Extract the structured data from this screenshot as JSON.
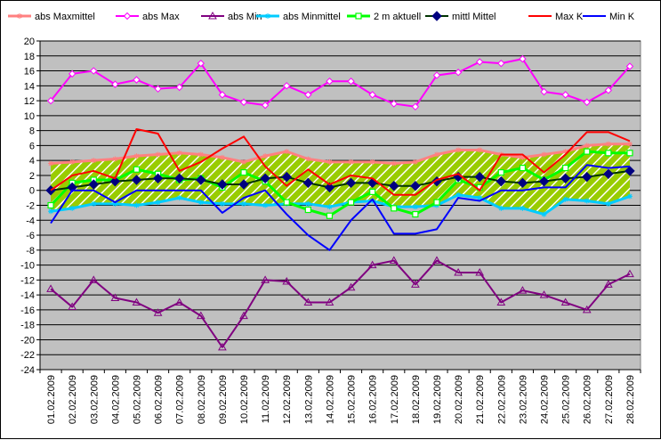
{
  "chart_data": {
    "type": "line",
    "title": "",
    "xlabel": "",
    "ylabel": "",
    "ylim": [
      -24,
      20
    ],
    "yticks": [
      20,
      18,
      16,
      14,
      12,
      10,
      8,
      6,
      4,
      2,
      0,
      -2,
      -4,
      -6,
      -8,
      -10,
      -12,
      -14,
      -16,
      -18,
      -20,
      -22,
      -24
    ],
    "grid": true,
    "legend_position": "top",
    "background": "#c0c0c0",
    "categories": [
      "01.02.2009",
      "02.02.2009",
      "03.02.2009",
      "04.02.2009",
      "05.02.2009",
      "06.02.2009",
      "07.02.2009",
      "08.02.2009",
      "09.02.2009",
      "10.02.2009",
      "11.02.2009",
      "12.02.2009",
      "13.02.2009",
      "14.02.2009",
      "15.02.2009",
      "16.02.2009",
      "17.02.2009",
      "18.02.2009",
      "19.02.2009",
      "20.02.2009",
      "21.02.2009",
      "22.02.2009",
      "23.02.2009",
      "24.02.2009",
      "25.02.2009",
      "26.02.2009",
      "27.02.2009",
      "28.02.2009"
    ],
    "band": {
      "upper_series": "abs Maxmittel",
      "lower_series": "abs Minmittel",
      "fill": "#99cc00",
      "hatch": "#ffffff"
    },
    "series": [
      {
        "name": "abs Maxmittel",
        "color": "#ff8080",
        "marker": "asterisk",
        "values": [
          3.6,
          3.8,
          4.0,
          4.2,
          4.6,
          4.8,
          5.0,
          4.8,
          4.4,
          3.8,
          4.6,
          5.2,
          4.2,
          3.8,
          3.8,
          3.8,
          3.6,
          3.8,
          4.8,
          5.4,
          5.4,
          4.8,
          4.4,
          4.8,
          5.2,
          6.0,
          6.2,
          6.2
        ]
      },
      {
        "name": "abs Max",
        "color": "#ff00ff",
        "marker": "diamond-open",
        "values": [
          12.0,
          15.6,
          16.0,
          14.2,
          14.8,
          13.6,
          13.8,
          17.0,
          12.8,
          11.8,
          11.4,
          14.0,
          12.8,
          14.6,
          14.6,
          12.8,
          11.6,
          11.2,
          15.4,
          15.8,
          17.2,
          17.0,
          17.6,
          13.2,
          12.8,
          11.8,
          13.4,
          16.6
        ]
      },
      {
        "name": "abs Min",
        "color": "#800080",
        "marker": "triangle-open",
        "values": [
          -13.2,
          -15.6,
          -12.0,
          -14.4,
          -15.0,
          -16.4,
          -15.0,
          -16.8,
          -21.0,
          -16.8,
          -12.0,
          -12.2,
          -15.0,
          -15.0,
          -13.0,
          -10.0,
          -9.4,
          -12.6,
          -9.4,
          -11.0,
          -11.0,
          -15.0,
          -13.4,
          -14.0,
          -15.0,
          -16.0,
          -12.6,
          -11.2
        ]
      },
      {
        "name": "abs Minmittel",
        "color": "#00ccff",
        "marker": "asterisk",
        "values": [
          -2.8,
          -2.4,
          -1.8,
          -1.8,
          -2.0,
          -1.6,
          -1.0,
          -1.6,
          -1.8,
          -1.8,
          -2.0,
          -1.8,
          -1.8,
          -2.2,
          -1.6,
          -1.4,
          -2.2,
          -2.2,
          -2.0,
          -0.6,
          -1.0,
          -2.4,
          -2.4,
          -3.2,
          -1.2,
          -1.4,
          -1.8,
          -0.8
        ]
      },
      {
        "name": "2 m aktuell",
        "color": "#00ff00",
        "marker": "square-open",
        "values": [
          -2.0,
          1.0,
          1.4,
          1.4,
          2.8,
          2.2,
          1.4,
          1.6,
          0.4,
          2.4,
          1.2,
          -1.6,
          -2.6,
          -3.4,
          -1.6,
          -0.2,
          -2.4,
          -3.2,
          -1.6,
          1.4,
          0.4,
          2.4,
          3.0,
          1.4,
          3.0,
          5.2,
          5.0,
          5.0
        ]
      },
      {
        "name": "mittl Mittel",
        "color": "#003300",
        "marker": "diamond-filled",
        "marker_color": "#000080",
        "values": [
          0.0,
          0.4,
          0.8,
          1.2,
          1.4,
          1.6,
          1.6,
          1.4,
          0.8,
          0.8,
          1.6,
          1.8,
          1.0,
          0.4,
          1.0,
          1.0,
          0.6,
          0.6,
          1.2,
          1.8,
          1.8,
          1.2,
          1.0,
          1.2,
          1.6,
          1.8,
          2.2,
          2.6
        ]
      },
      {
        "name": "Max K",
        "color": "#ff0000",
        "marker": "none",
        "values": [
          0.0,
          2.0,
          2.6,
          1.6,
          8.2,
          7.6,
          2.6,
          3.8,
          5.6,
          7.2,
          3.2,
          0.6,
          2.8,
          0.8,
          2.0,
          1.6,
          -0.6,
          -0.6,
          1.4,
          2.2,
          0.0,
          4.8,
          4.8,
          2.4,
          4.8,
          7.8,
          7.8,
          6.6
        ]
      },
      {
        "name": "Min K",
        "color": "#0000ff",
        "marker": "none",
        "values": [
          -4.4,
          0.0,
          0.0,
          -1.6,
          0.0,
          0.0,
          0.0,
          0.0,
          -3.0,
          -1.0,
          0.0,
          -3.2,
          -6.0,
          -8.0,
          -4.0,
          -1.2,
          -5.8,
          -5.8,
          -5.2,
          -1.0,
          -1.4,
          0.0,
          0.0,
          0.4,
          0.4,
          3.4,
          3.0,
          3.2
        ]
      }
    ]
  }
}
